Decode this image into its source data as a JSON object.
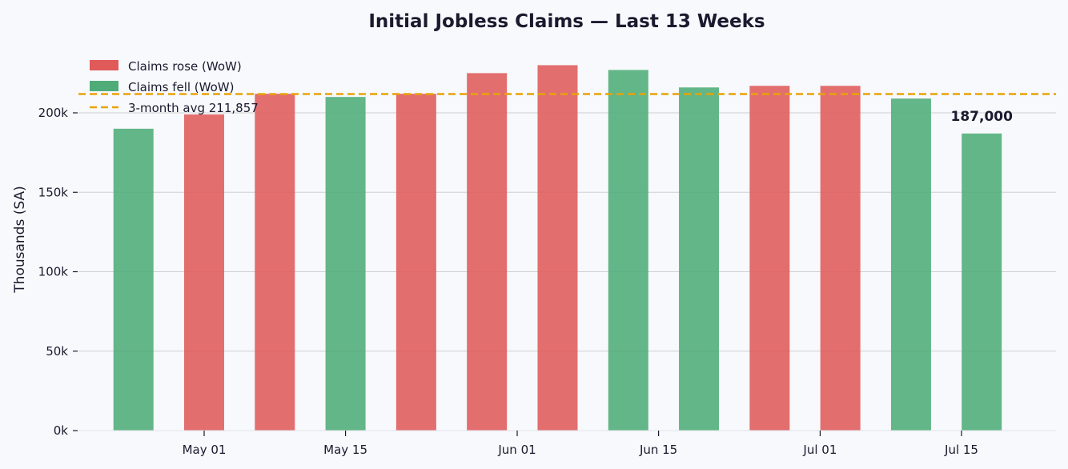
{
  "chart_data": {
    "type": "bar",
    "title": "Initial Jobless Claims — Last 13 Weeks",
    "ylabel": "Thousands (SA)",
    "xlabel": "",
    "ylim": [
      0,
      240000
    ],
    "yticks": [
      {
        "value": 0,
        "label": "0k"
      },
      {
        "value": 50000,
        "label": "50k"
      },
      {
        "value": 100000,
        "label": "100k"
      },
      {
        "value": 150000,
        "label": "150k"
      },
      {
        "value": 200000,
        "label": "200k"
      }
    ],
    "grid": true,
    "legend_position": "top-left",
    "x": [
      "2024-04-24",
      "2024-05-01",
      "2024-05-08",
      "2024-05-15",
      "2024-05-22",
      "2024-05-29",
      "2024-06-05",
      "2024-06-12",
      "2024-06-19",
      "2024-06-26",
      "2024-07-03",
      "2024-07-10",
      "2024-07-17"
    ],
    "values": [
      190000,
      199000,
      212000,
      210000,
      212000,
      225000,
      230000,
      227000,
      216000,
      217000,
      217000,
      209000,
      187000
    ],
    "direction": [
      "fell",
      "rose",
      "rose",
      "fell",
      "rose",
      "rose",
      "rose",
      "fell",
      "fell",
      "rose",
      "rose",
      "fell",
      "fell"
    ],
    "xticks": [
      {
        "date": "2024-05-01",
        "label": "May 01"
      },
      {
        "date": "2024-05-15",
        "label": "May 15"
      },
      {
        "date": "2024-06-01",
        "label": "Jun 01"
      },
      {
        "date": "2024-06-15",
        "label": "Jun 15"
      },
      {
        "date": "2024-07-01",
        "label": "Jul 01"
      },
      {
        "date": "2024-07-15",
        "label": "Jul 15"
      }
    ],
    "average": {
      "value": 211857,
      "label": "3-month avg  211,857"
    },
    "legend": [
      {
        "key": "rose",
        "label": "Claims rose (WoW)"
      },
      {
        "key": "fell",
        "label": "Claims fell (WoW)"
      },
      {
        "key": "avg",
        "label": "3-month avg  211,857"
      }
    ],
    "annotation": {
      "value": 187000,
      "label": "187,000"
    },
    "colors": {
      "rose": "#e05a5a",
      "fell": "#4fac78",
      "avg": "#e8a30a",
      "grid": "#d0d0d0",
      "background": "#f7f9fc",
      "text": "#1a1a2e"
    }
  }
}
